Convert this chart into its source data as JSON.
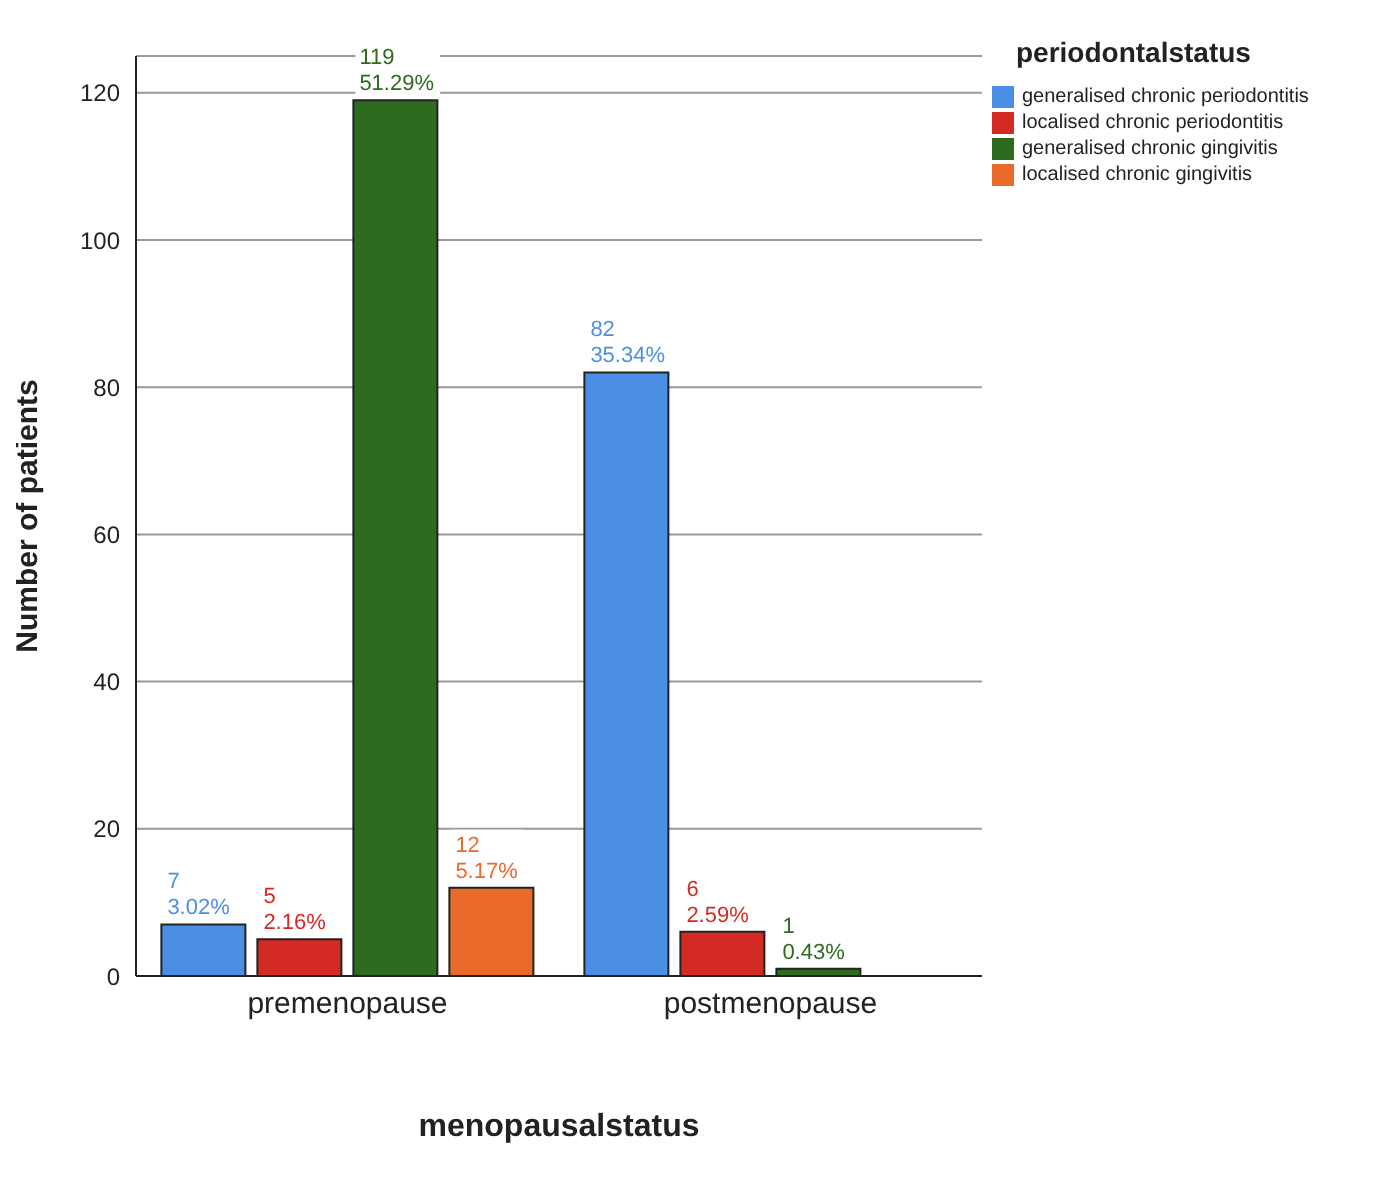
{
  "chart_data": {
    "type": "bar",
    "xlabel": "menopausalstatus",
    "ylabel": "Number of patients",
    "legend_title": "periodontalstatus",
    "categories": [
      "premenopause",
      "postmenopause"
    ],
    "series": [
      {
        "name": "generalised chronic periodontitis",
        "color": "#4a8ee6",
        "values": [
          7,
          82
        ],
        "value_labels": [
          "7\n3.02%",
          "82\n35.34%"
        ]
      },
      {
        "name": "localised chronic periodontitis",
        "color": "#d42a24",
        "values": [
          5,
          6
        ],
        "value_labels": [
          "5\n2.16%",
          "6\n2.59%"
        ]
      },
      {
        "name": "generalised chronic gingivitis",
        "color": "#2e6b1e",
        "values": [
          119,
          1
        ],
        "value_labels": [
          "119\n51.29%",
          "1\n0.43%"
        ]
      },
      {
        "name": "localised chronic gingivitis",
        "color": "#ea6a2c",
        "values": [
          12,
          null
        ],
        "value_labels": [
          "12\n5.17%",
          null
        ]
      }
    ],
    "ylim": [
      0,
      125
    ],
    "yticks": [
      0,
      20,
      40,
      60,
      80,
      100,
      120
    ],
    "grid": "y",
    "legend": "top right"
  }
}
